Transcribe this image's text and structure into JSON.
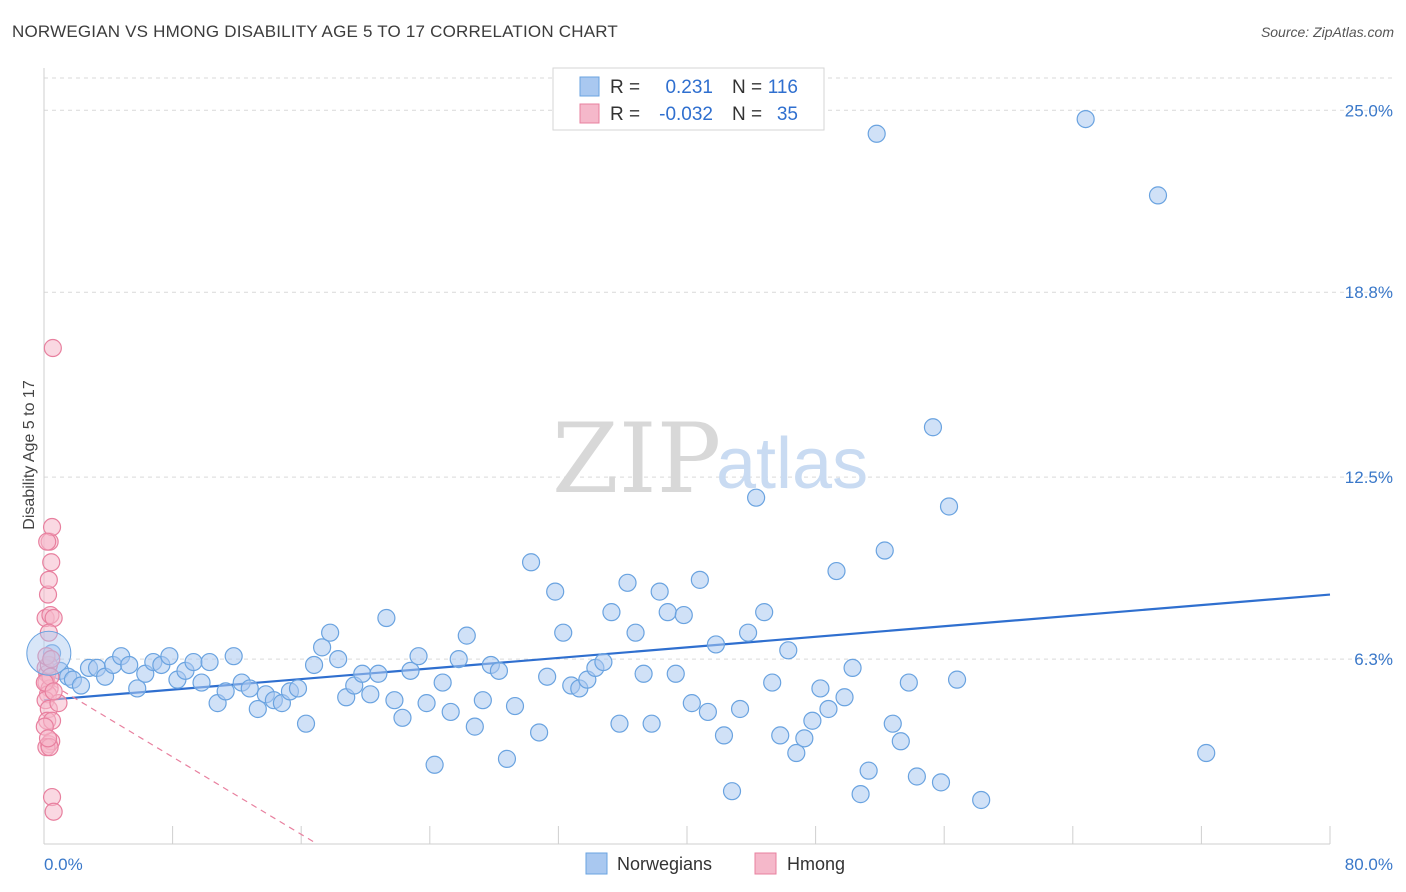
{
  "title": "NORWEGIAN VS HMONG DISABILITY AGE 5 TO 17 CORRELATION CHART",
  "source": "Source: ZipAtlas.com",
  "watermark": {
    "zip": "ZIP",
    "atlas": "atlas"
  },
  "colors": {
    "blue": "#6aa3e0",
    "blue_fill": "#a9c8f0",
    "blue_line": "#2f6fcf",
    "pink": "#e8809f",
    "pink_fill": "#f5b8ca",
    "grid": "#d9d9d9",
    "tick_text": "#3a78c9"
  },
  "legend": {
    "rows": [
      {
        "r_label": "R =",
        "r_value": "0.231",
        "n_label": "N =",
        "n_value": "116",
        "color": "blue"
      },
      {
        "r_label": "R =",
        "r_value": "-0.032",
        "n_label": "N =",
        "n_value": "35",
        "color": "pink"
      }
    ]
  },
  "bottom_legend": [
    {
      "label": "Norwegians",
      "color": "blue"
    },
    {
      "label": "Hmong",
      "color": "pink"
    }
  ],
  "chart_data": {
    "type": "scatter",
    "title": "NORWEGIAN VS HMONG DISABILITY AGE 5 TO 17 CORRELATION CHART",
    "xlabel": "",
    "ylabel": "Disability Age 5 to 17",
    "xlim": [
      0,
      80
    ],
    "ylim": [
      0,
      26.1
    ],
    "x_tick_labels": [
      "0.0%",
      "80.0%"
    ],
    "y_ticks": [
      6.3,
      12.5,
      18.8,
      25.0
    ],
    "y_tick_labels": [
      "6.3%",
      "12.5%",
      "18.8%",
      "25.0%"
    ],
    "grid": "horizontal dashed",
    "series": [
      {
        "name": "Norwegians",
        "color": "blue",
        "trend": {
          "x": [
            0,
            80
          ],
          "y": [
            4.9,
            8.5
          ]
        },
        "points": [
          [
            0.5,
            6.5
          ],
          [
            1,
            5.9
          ],
          [
            1.5,
            5.7
          ],
          [
            1.8,
            5.6
          ],
          [
            2.3,
            5.4
          ],
          [
            2.8,
            6.0
          ],
          [
            3.3,
            6.0
          ],
          [
            3.8,
            5.7
          ],
          [
            4.3,
            6.1
          ],
          [
            4.8,
            6.4
          ],
          [
            5.3,
            6.1
          ],
          [
            5.8,
            5.3
          ],
          [
            6.3,
            5.8
          ],
          [
            6.8,
            6.2
          ],
          [
            7.3,
            6.1
          ],
          [
            7.8,
            6.4
          ],
          [
            8.3,
            5.6
          ],
          [
            8.8,
            5.9
          ],
          [
            9.3,
            6.2
          ],
          [
            9.8,
            5.5
          ],
          [
            10.3,
            6.2
          ],
          [
            10.8,
            4.8
          ],
          [
            11.3,
            5.2
          ],
          [
            11.8,
            6.4
          ],
          [
            12.3,
            5.5
          ],
          [
            12.8,
            5.3
          ],
          [
            13.3,
            4.6
          ],
          [
            13.8,
            5.1
          ],
          [
            14.3,
            4.9
          ],
          [
            14.8,
            4.8
          ],
          [
            15.3,
            5.2
          ],
          [
            15.8,
            5.3
          ],
          [
            16.3,
            4.1
          ],
          [
            16.8,
            6.1
          ],
          [
            17.3,
            6.7
          ],
          [
            17.8,
            7.2
          ],
          [
            18.3,
            6.3
          ],
          [
            18.8,
            5.0
          ],
          [
            19.3,
            5.4
          ],
          [
            19.8,
            5.8
          ],
          [
            20.3,
            5.1
          ],
          [
            20.8,
            5.8
          ],
          [
            21.3,
            7.7
          ],
          [
            21.8,
            4.9
          ],
          [
            22.3,
            4.3
          ],
          [
            22.8,
            5.9
          ],
          [
            23.3,
            6.4
          ],
          [
            23.8,
            4.8
          ],
          [
            24.3,
            2.7
          ],
          [
            24.8,
            5.5
          ],
          [
            25.3,
            4.5
          ],
          [
            25.8,
            6.3
          ],
          [
            26.3,
            7.1
          ],
          [
            26.8,
            4.0
          ],
          [
            27.3,
            4.9
          ],
          [
            27.8,
            6.1
          ],
          [
            28.3,
            5.9
          ],
          [
            28.8,
            2.9
          ],
          [
            29.3,
            4.7
          ],
          [
            30.3,
            9.6
          ],
          [
            30.8,
            3.8
          ],
          [
            31.3,
            5.7
          ],
          [
            31.8,
            8.6
          ],
          [
            32.3,
            7.2
          ],
          [
            32.8,
            5.4
          ],
          [
            33.3,
            5.3
          ],
          [
            33.8,
            5.6
          ],
          [
            34.3,
            6.0
          ],
          [
            34.8,
            6.2
          ],
          [
            35.3,
            7.9
          ],
          [
            35.8,
            4.1
          ],
          [
            36.3,
            8.9
          ],
          [
            36.8,
            7.2
          ],
          [
            37.3,
            5.8
          ],
          [
            37.8,
            4.1
          ],
          [
            38.3,
            8.6
          ],
          [
            38.8,
            7.9
          ],
          [
            39.3,
            5.8
          ],
          [
            39.8,
            7.8
          ],
          [
            40.3,
            4.8
          ],
          [
            40.8,
            9.0
          ],
          [
            41.3,
            4.5
          ],
          [
            41.8,
            6.8
          ],
          [
            42.3,
            3.7
          ],
          [
            42.8,
            1.8
          ],
          [
            43.3,
            4.6
          ],
          [
            43.8,
            7.2
          ],
          [
            44.3,
            11.8
          ],
          [
            44.8,
            7.9
          ],
          [
            45.3,
            5.5
          ],
          [
            45.8,
            3.7
          ],
          [
            46.3,
            6.6
          ],
          [
            46.8,
            3.1
          ],
          [
            47.3,
            3.6
          ],
          [
            47.8,
            4.2
          ],
          [
            48.3,
            5.3
          ],
          [
            48.8,
            4.6
          ],
          [
            49.3,
            9.3
          ],
          [
            49.8,
            5.0
          ],
          [
            50.3,
            6.0
          ],
          [
            50.8,
            1.7
          ],
          [
            51.3,
            2.5
          ],
          [
            51.8,
            24.2
          ],
          [
            52.3,
            10.0
          ],
          [
            52.8,
            4.1
          ],
          [
            53.3,
            3.5
          ],
          [
            53.8,
            5.5
          ],
          [
            54.3,
            2.3
          ],
          [
            55.3,
            14.2
          ],
          [
            55.8,
            2.1
          ],
          [
            56.3,
            11.5
          ],
          [
            56.8,
            5.6
          ],
          [
            58.3,
            1.5
          ],
          [
            64.8,
            24.7
          ],
          [
            69.3,
            22.1
          ],
          [
            72.3,
            3.1
          ]
        ]
      },
      {
        "name": "Hmong",
        "color": "pink",
        "trend": {
          "x": [
            0,
            17
          ],
          "y": [
            5.6,
            0.0
          ]
        },
        "points": [
          [
            0.1,
            6.0
          ],
          [
            0.2,
            5.8
          ],
          [
            0.3,
            6.1
          ],
          [
            0.15,
            5.5
          ],
          [
            0.35,
            5.3
          ],
          [
            0.25,
            5.1
          ],
          [
            0.4,
            5.7
          ],
          [
            0.1,
            4.9
          ],
          [
            0.3,
            4.6
          ],
          [
            0.2,
            4.2
          ],
          [
            0.5,
            4.2
          ],
          [
            0.3,
            3.4
          ],
          [
            0.45,
            3.5
          ],
          [
            0.15,
            3.3
          ],
          [
            0.35,
            3.3
          ],
          [
            0.5,
            1.6
          ],
          [
            0.6,
            1.1
          ],
          [
            0.1,
            7.7
          ],
          [
            0.4,
            7.8
          ],
          [
            0.6,
            7.7
          ],
          [
            0.25,
            8.5
          ],
          [
            0.3,
            9.0
          ],
          [
            0.45,
            9.6
          ],
          [
            0.35,
            10.3
          ],
          [
            0.5,
            10.8
          ],
          [
            0.2,
            10.3
          ],
          [
            0.55,
            16.9
          ],
          [
            0.9,
            4.8
          ],
          [
            0.05,
            5.5
          ],
          [
            0.15,
            6.4
          ],
          [
            0.3,
            7.2
          ],
          [
            0.45,
            6.3
          ],
          [
            0.6,
            5.2
          ],
          [
            0.05,
            4.0
          ],
          [
            0.25,
            3.6
          ]
        ]
      }
    ]
  }
}
